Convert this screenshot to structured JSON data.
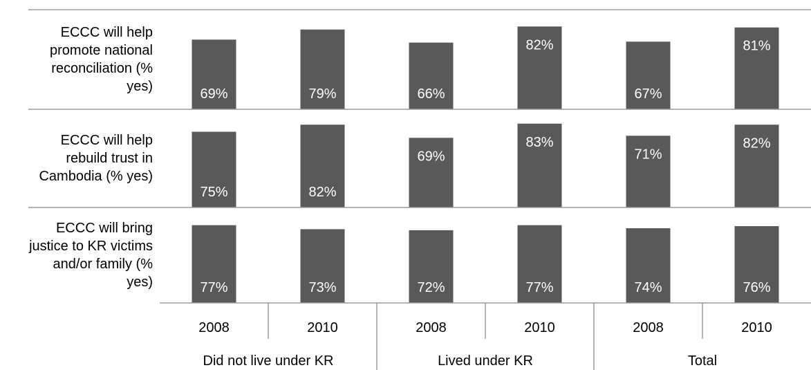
{
  "chart_data": {
    "type": "bar",
    "title": "",
    "ylim": [
      0,
      100
    ],
    "colors": {
      "bar": "#595959",
      "axis": "#9a9a9a",
      "bar_text": "#ffffff"
    },
    "groups": [
      {
        "name": "Did not live under KR",
        "years": [
          "2008",
          "2010"
        ]
      },
      {
        "name": "Lived under KR",
        "years": [
          "2008",
          "2010"
        ]
      },
      {
        "name": "Total",
        "years": [
          "2008",
          "2010"
        ]
      }
    ],
    "rows": [
      {
        "label_lines": [
          "ECCC will help",
          "promote national",
          "reconciliation (%",
          "yes)"
        ],
        "values": [
          69,
          79,
          66,
          82,
          67,
          81
        ],
        "value_labels": [
          "69%",
          "79%",
          "66%",
          "82%",
          "67%",
          "81%"
        ]
      },
      {
        "label_lines": [
          "ECCC will help",
          "rebuild trust in",
          "Cambodia (% yes)"
        ],
        "values": [
          75,
          82,
          69,
          83,
          71,
          82
        ],
        "value_labels": [
          "75%",
          "82%",
          "69%",
          "83%",
          "71%",
          "82%"
        ]
      },
      {
        "label_lines": [
          "ECCC will bring",
          "justice to KR victims",
          "and/or family (%",
          "yes)"
        ],
        "values": [
          77,
          73,
          72,
          77,
          74,
          76
        ],
        "value_labels": [
          "77%",
          "73%",
          "72%",
          "77%",
          "74%",
          "76%"
        ]
      }
    ]
  }
}
